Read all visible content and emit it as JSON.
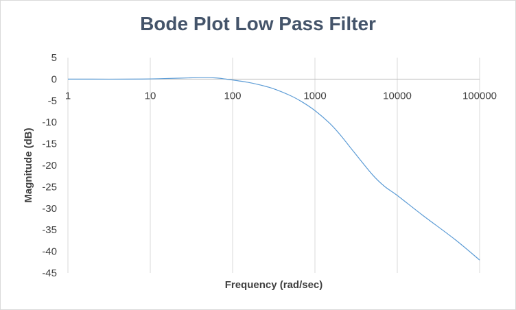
{
  "chart_data": {
    "type": "line",
    "title": "Bode Plot Low Pass Filter",
    "xlabel": "Frequency (rad/sec)",
    "ylabel": "Magnitude (dB)",
    "x_scale": "log",
    "xlim": [
      1,
      100000
    ],
    "ylim": [
      -45,
      5
    ],
    "x_ticks": [
      "1",
      "10",
      "100",
      "1000",
      "10000",
      "100000"
    ],
    "y_ticks": [
      "5",
      "0",
      "-5",
      "-10",
      "-15",
      "-20",
      "-25",
      "-30",
      "-35",
      "-40",
      "-45"
    ],
    "grid": "vertical",
    "legend": "none",
    "colors": {
      "line": "#5b9bd5",
      "grid": "#d9d9d9",
      "title": "#44546a",
      "text": "#404040"
    },
    "series": [
      {
        "x": [
          1,
          2,
          5,
          10,
          20,
          30,
          40,
          50,
          60,
          70,
          80,
          100,
          150,
          200,
          300,
          500,
          700,
          1000,
          1500,
          2000,
          3000,
          5000,
          7000,
          10000,
          20000,
          50000,
          100000
        ],
        "values": [
          0,
          0,
          0,
          0.05,
          0.2,
          0.3,
          0.35,
          0.35,
          0.3,
          0.2,
          0.05,
          -0.2,
          -0.7,
          -1.2,
          -2.1,
          -3.8,
          -5.3,
          -7.3,
          -10.2,
          -12.8,
          -17.0,
          -22.2,
          -24.9,
          -27.0,
          -31.5,
          -37.2,
          -42.0
        ]
      }
    ]
  }
}
